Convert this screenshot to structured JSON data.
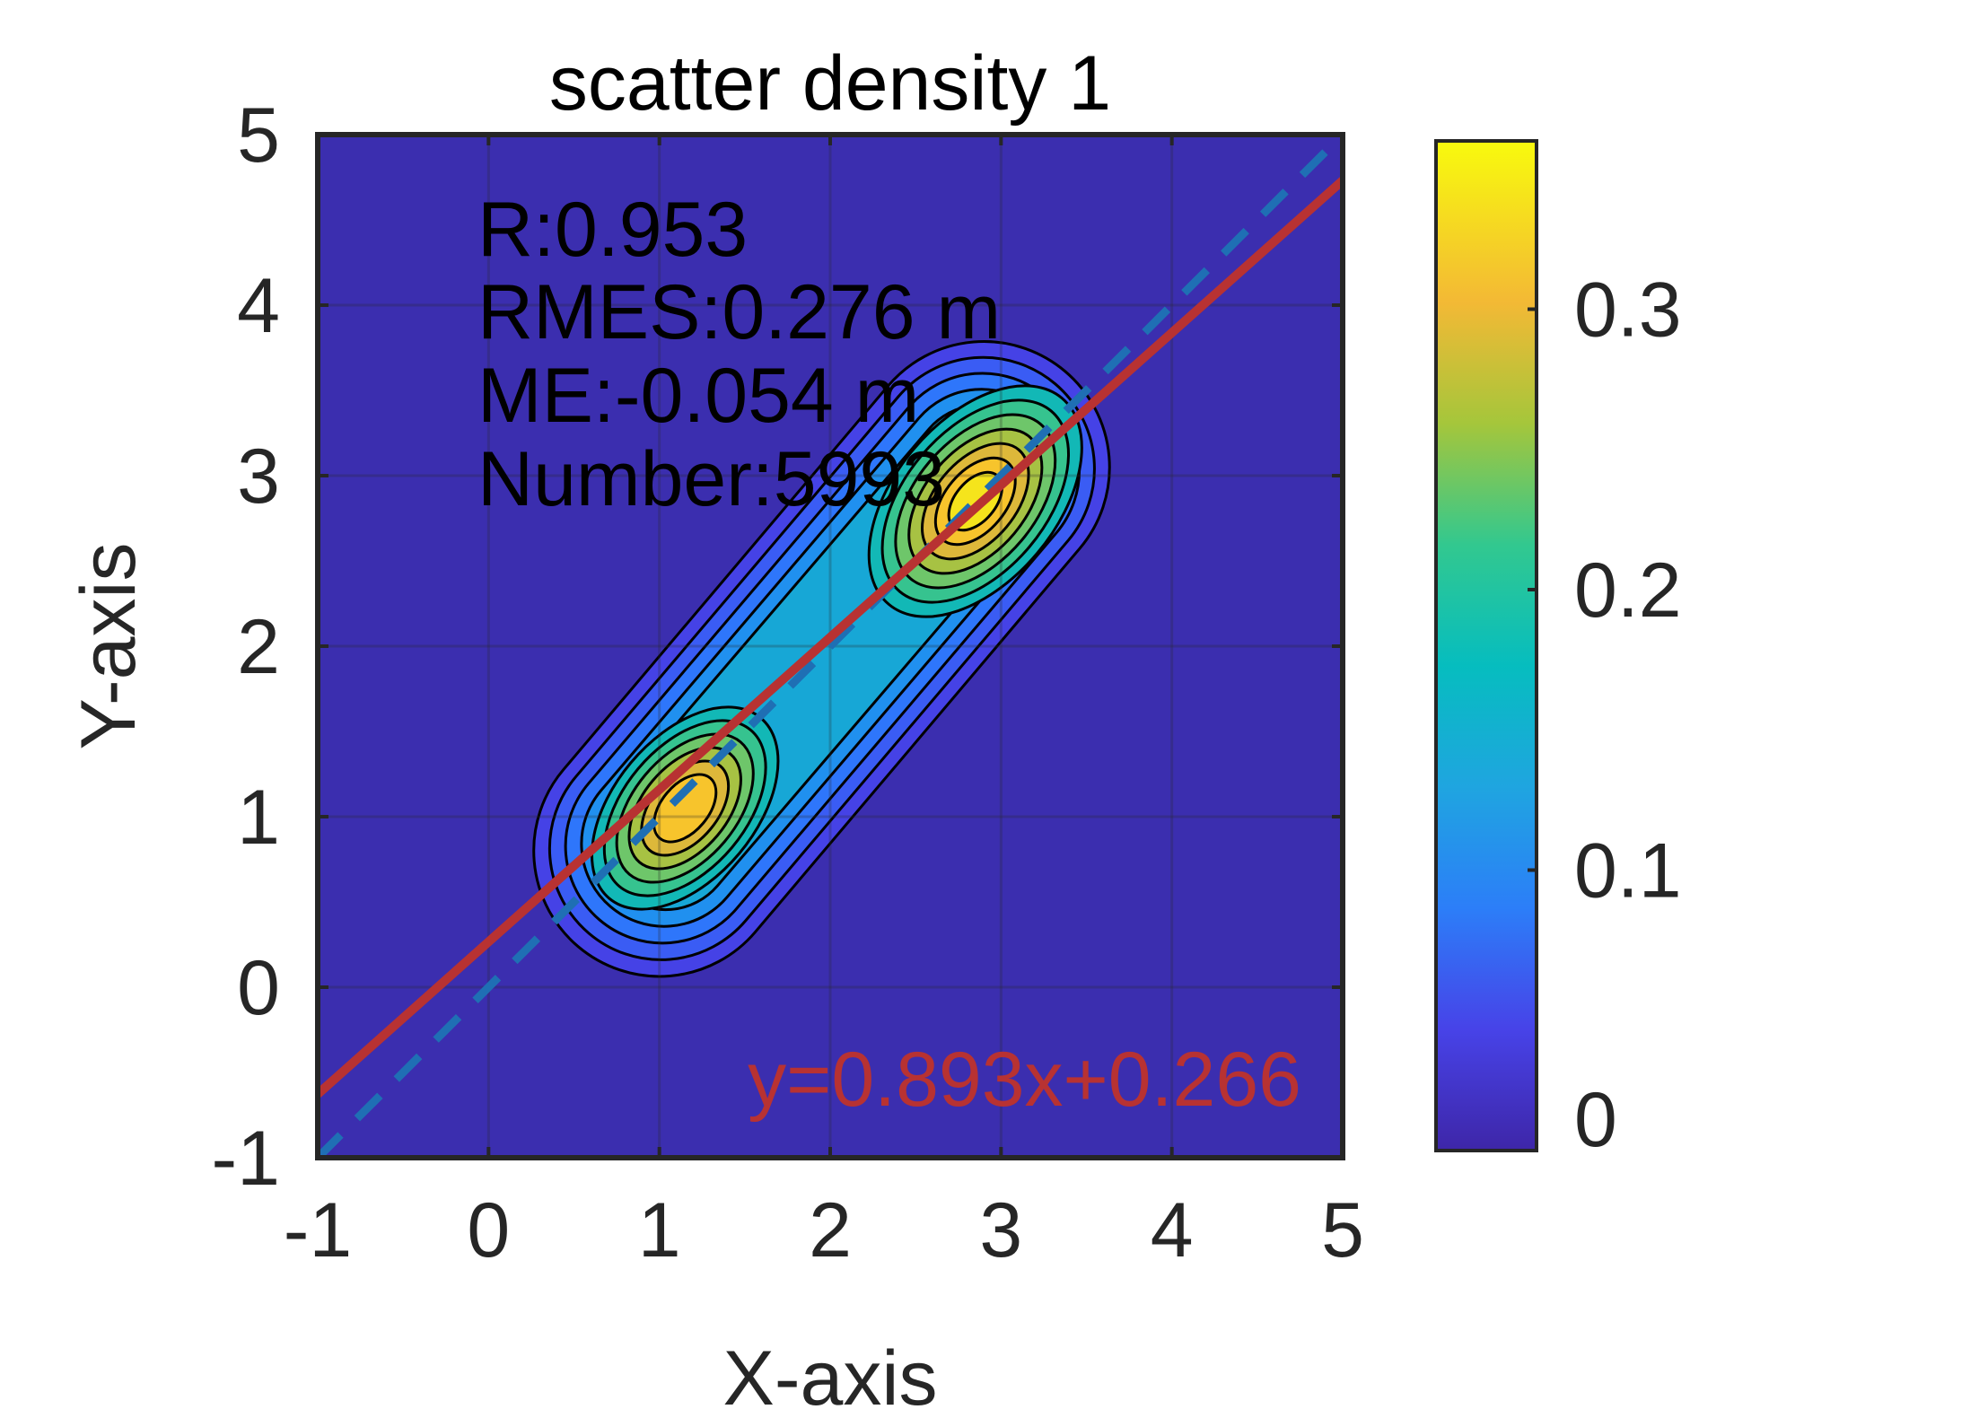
{
  "chart_data": {
    "type": "contour",
    "title": "scatter density 1",
    "xlabel": "X-axis",
    "ylabel": "Y-axis",
    "xlim": [
      -1,
      5
    ],
    "ylim": [
      -1,
      5
    ],
    "xticks": [
      "-1",
      "0",
      "1",
      "2",
      "3",
      "4",
      "5"
    ],
    "yticks": [
      "-1",
      "0",
      "1",
      "2",
      "3",
      "4",
      "5"
    ],
    "grid": true,
    "stats": [
      "R:0.953",
      "RMES:0.276 m",
      "ME:-0.054 m",
      "Number:5993"
    ],
    "fit": {
      "equation": "y=0.893x+0.266",
      "slope": 0.893,
      "intercept": 0.266,
      "color": "#b83232"
    },
    "reference_line": {
      "slope": 1,
      "intercept": 0,
      "style": "dashed",
      "color": "#1f6fb4"
    },
    "density_peaks": [
      {
        "x": 1.15,
        "y": 1.05,
        "value": 0.31
      },
      {
        "x": 2.85,
        "y": 2.85,
        "value": 0.36
      }
    ],
    "colorbar": {
      "limits": [
        0,
        0.36
      ],
      "ticks": [
        "0",
        "0.1",
        "0.2",
        "0.3"
      ],
      "tick_values": [
        0,
        0.1,
        0.2,
        0.3
      ],
      "colormap": "parula",
      "background_color": "#3b2eaf"
    }
  }
}
